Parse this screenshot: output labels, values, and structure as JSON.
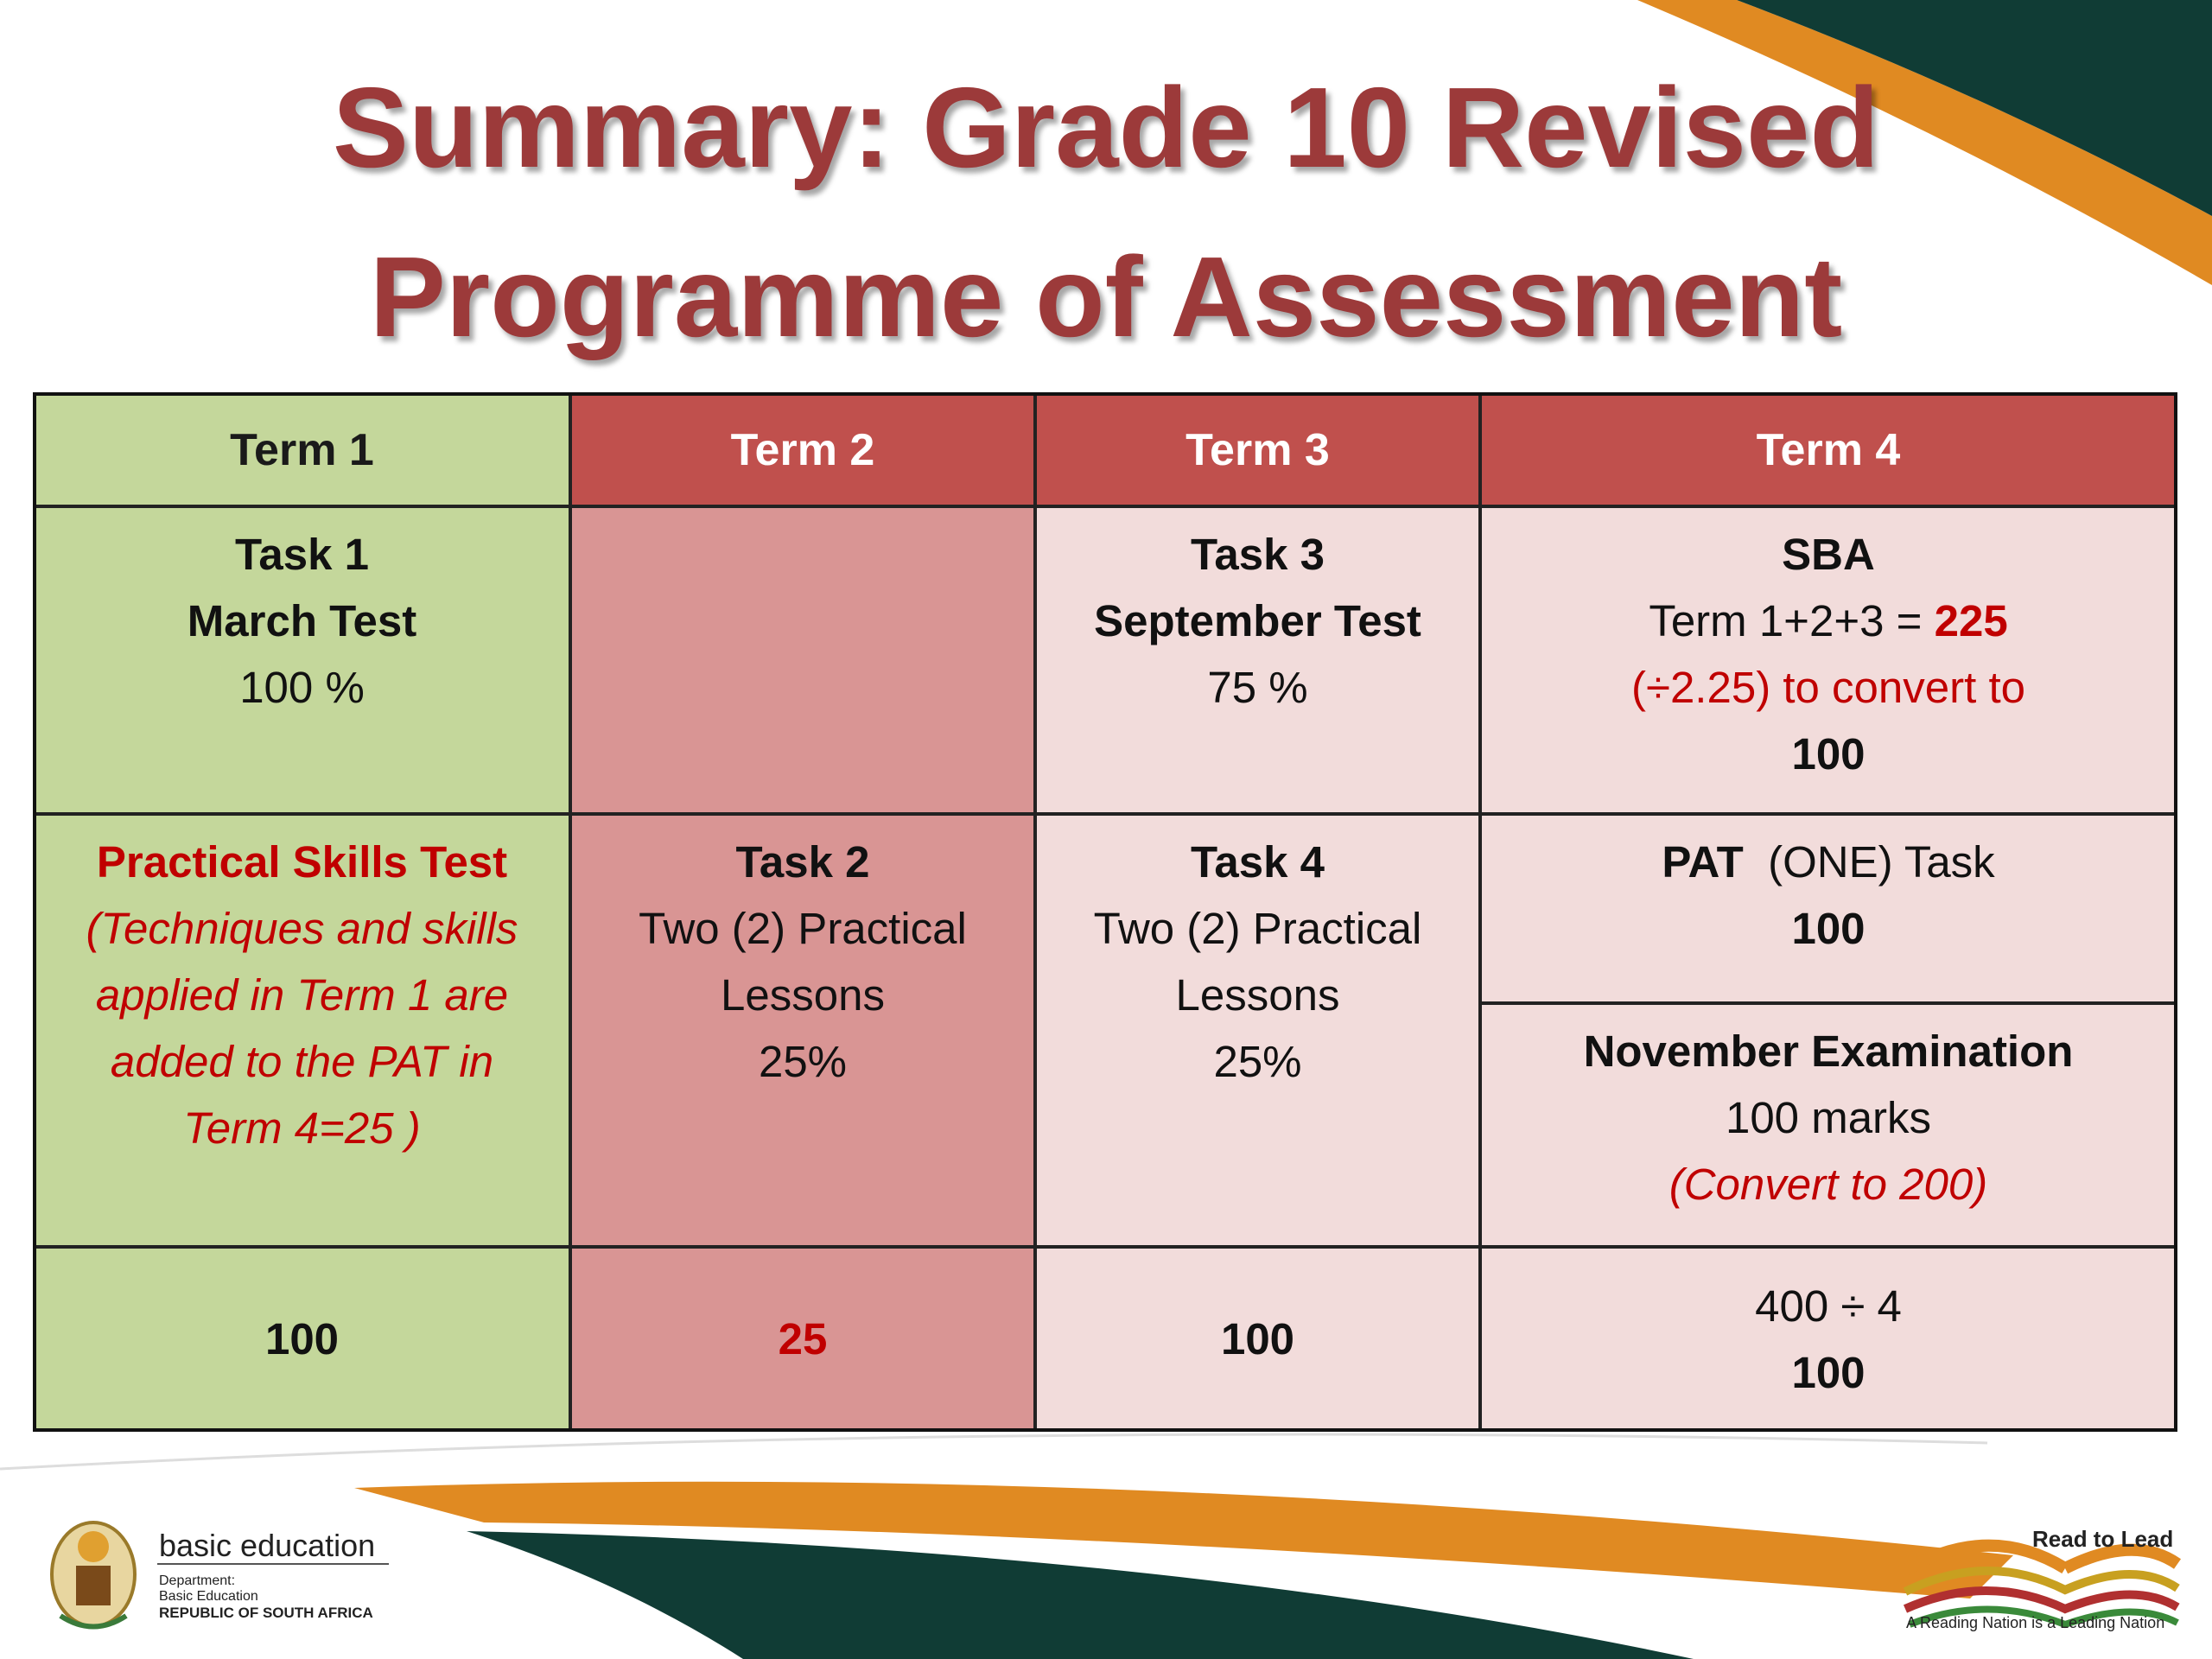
{
  "header": {
    "title": [
      "Summary: Grade 10 Revised",
      "Programme of Assessment"
    ],
    "color": "#9c3a3a"
  },
  "table": {
    "columns": [
      {
        "text": "Term 1",
        "color": "#1a1a1a",
        "fill": "#c4d79b"
      },
      {
        "text": "Term 2",
        "color": "#ffffff",
        "fill": "#c0504d"
      },
      {
        "text": "Term 3",
        "color": "#ffffff",
        "fill": "#c0504d"
      },
      {
        "text": "Term 4",
        "color": "#ffffff",
        "fill": "#c0504d"
      }
    ],
    "body_fills": [
      "#c4d79b",
      "#d99594",
      "#f2dcdb",
      "#f2dcdb"
    ],
    "rows": [
      [
        {
          "lines": [
            [
              {
                "text": "Task 1",
                "bold": true
              }
            ],
            [
              {
                "text": "March Test",
                "bold": true
              }
            ],
            [
              {
                "text": "100 %"
              }
            ]
          ]
        },
        {
          "lines": []
        },
        {
          "lines": [
            [
              {
                "text": "Task 3",
                "bold": true
              }
            ],
            [
              {
                "text": "September Test",
                "bold": true
              }
            ],
            [
              {
                "text": "75 %"
              }
            ]
          ]
        },
        {
          "lines": [
            [
              {
                "text": "SBA",
                "bold": true
              }
            ],
            [
              {
                "text": "Term 1+2+3 = "
              },
              {
                "text": "225",
                "bold": true,
                "color": "#c00000"
              }
            ],
            [
              {
                "text": "(÷2.25) to convert to",
                "color": "#c00000"
              }
            ],
            [
              {
                "text": "100",
                "bold": true
              }
            ]
          ]
        }
      ],
      [
        {
          "lines": [
            [
              {
                "text": "Practical Skills Test",
                "bold": true,
                "color": "#c00000"
              }
            ],
            [
              {
                "text": "(Techniques and skills",
                "italic": true,
                "color": "#c00000"
              }
            ],
            [
              {
                "text": "applied in Term 1 are",
                "italic": true,
                "color": "#c00000"
              }
            ],
            [
              {
                "text": "added to the PAT in",
                "italic": true,
                "color": "#c00000"
              }
            ],
            [
              {
                "text": "Term 4=25 )",
                "italic": true,
                "color": "#c00000"
              }
            ]
          ]
        },
        {
          "lines": [
            [
              {
                "text": "Task 2",
                "bold": true
              }
            ],
            [
              {
                "text": "Two (2) Practical"
              }
            ],
            [
              {
                "text": "Lessons"
              }
            ],
            [
              {
                "text": "25%"
              }
            ]
          ]
        },
        {
          "lines": [
            [
              {
                "text": "Task 4",
                "bold": true
              }
            ],
            [
              {
                "text": "Two (2) Practical"
              }
            ],
            [
              {
                "text": "Lessons"
              }
            ],
            [
              {
                "text": "25%"
              }
            ]
          ]
        },
        {
          "split": [
            {
              "lines": [
                [
                  {
                    "text": "PAT",
                    "bold": true
                  },
                  {
                    "text": "  (ONE) Task"
                  }
                ],
                [
                  {
                    "text": "100",
                    "bold": true
                  }
                ]
              ]
            },
            {
              "lines": [
                [
                  {
                    "text": "November Examination",
                    "bold": true
                  }
                ],
                [
                  {
                    "text": "100 marks"
                  }
                ],
                [
                  {
                    "text": "(Convert to 200)",
                    "italic": true,
                    "color": "#c00000"
                  }
                ]
              ]
            }
          ]
        }
      ],
      [
        {
          "lines": [
            [
              {
                "text": "100",
                "bold": true
              }
            ]
          ]
        },
        {
          "lines": [
            [
              {
                "text": "25",
                "bold": true,
                "color": "#c00000"
              }
            ]
          ]
        },
        {
          "lines": [
            [
              {
                "text": "100",
                "bold": true
              }
            ]
          ]
        },
        {
          "lines": [
            [
              {
                "text": "400 ÷ 4"
              }
            ],
            [
              {
                "text": "100",
                "bold": true
              }
            ]
          ]
        }
      ]
    ]
  },
  "footer": {
    "left": {
      "name": "basic education",
      "lines": [
        "Department:",
        "Basic Education",
        "REPUBLIC OF SOUTH AFRICA"
      ]
    },
    "right": {
      "name": "Read to Lead",
      "tagline": "A Reading Nation is a Leading Nation"
    }
  }
}
